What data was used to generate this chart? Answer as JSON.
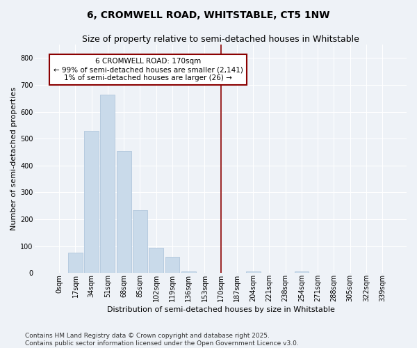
{
  "title": "6, CROMWELL ROAD, WHITSTABLE, CT5 1NW",
  "subtitle": "Size of property relative to semi-detached houses in Whitstable",
  "xlabel": "Distribution of semi-detached houses by size in Whitstable",
  "ylabel": "Number of semi-detached properties",
  "bar_labels": [
    "0sqm",
    "17sqm",
    "34sqm",
    "51sqm",
    "68sqm",
    "85sqm",
    "102sqm",
    "119sqm",
    "136sqm",
    "153sqm",
    "170sqm",
    "187sqm",
    "204sqm",
    "221sqm",
    "238sqm",
    "254sqm",
    "271sqm",
    "288sqm",
    "305sqm",
    "322sqm",
    "339sqm"
  ],
  "bar_values": [
    0,
    75,
    530,
    665,
    455,
    235,
    95,
    60,
    5,
    0,
    0,
    0,
    5,
    0,
    0,
    5,
    0,
    0,
    0,
    0,
    0
  ],
  "vline_index": 10,
  "annotation_title": "6 CROMWELL ROAD: 170sqm",
  "annotation_line1": "← 99% of semi-detached houses are smaller (2,141)",
  "annotation_line2": "1% of semi-detached houses are larger (26) →",
  "bar_color": "#c9daea",
  "bar_edge_color": "#a8c0d8",
  "vline_color": "#8b0000",
  "annotation_box_edgecolor": "#8b0000",
  "annotation_box_facecolor": "#ffffff",
  "ylim_max": 850,
  "yticks": [
    0,
    100,
    200,
    300,
    400,
    500,
    600,
    700,
    800
  ],
  "footnote1": "Contains HM Land Registry data © Crown copyright and database right 2025.",
  "footnote2": "Contains public sector information licensed under the Open Government Licence v3.0.",
  "background_color": "#eef2f7",
  "grid_color": "#ffffff",
  "title_fontsize": 10,
  "subtitle_fontsize": 9,
  "ylabel_fontsize": 8,
  "xlabel_fontsize": 8,
  "tick_fontsize": 7,
  "annotation_fontsize": 7.5,
  "footnote_fontsize": 6.5
}
